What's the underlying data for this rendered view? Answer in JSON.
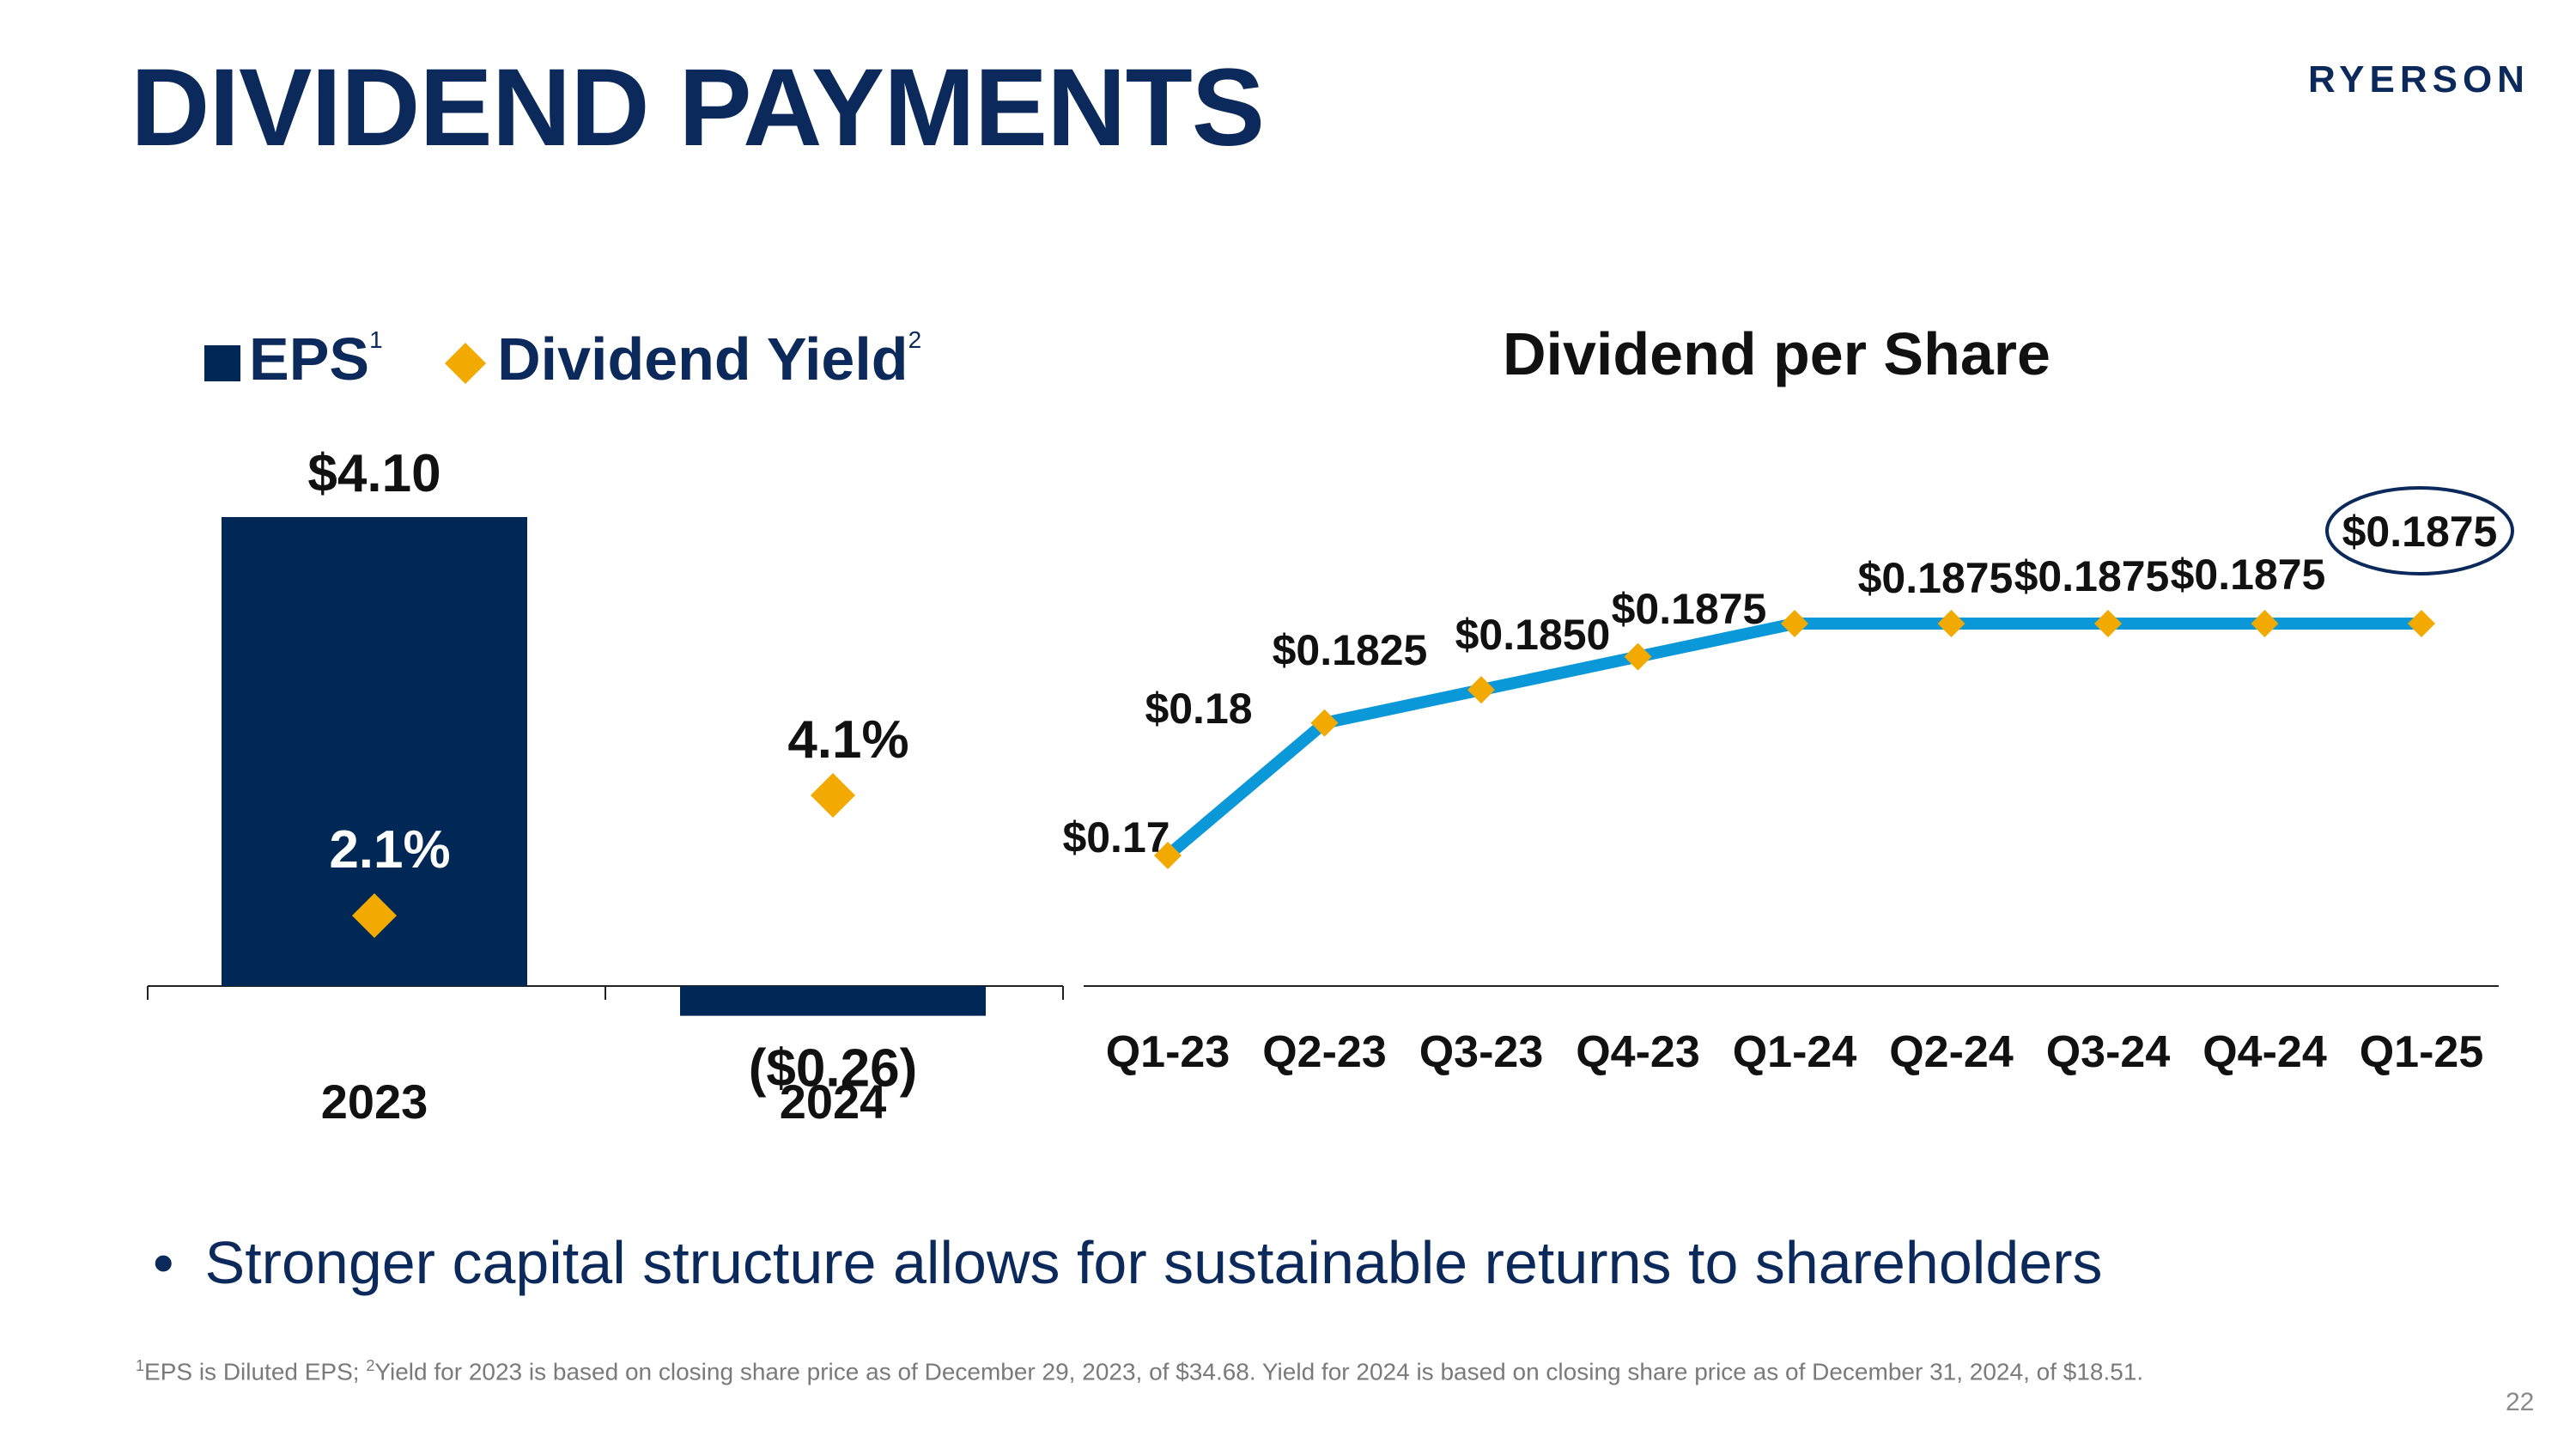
{
  "slide": {
    "title": "DIVIDEND PAYMENTS",
    "logo_text": "RYERSON",
    "page_number": "22",
    "bullet": "Stronger capital structure allows for sustainable returns to shareholders",
    "footnote": {
      "sup1": "1",
      "part1": "EPS is Diluted EPS; ",
      "sup2": "2",
      "part2": "Yield for 2023 is based on closing share price as of December 29, 2023, of $34.68. Yield for 2024 is based on closing share price as of December 31, 2024, of $18.51."
    }
  },
  "legend": {
    "eps_label": "EPS",
    "eps_sup": "1",
    "yield_label": "Dividend Yield",
    "yield_sup": "2"
  },
  "colors": {
    "navy": "#002856",
    "title_navy": "#0b2a5b",
    "gold": "#f2a900",
    "line_blue": "#0a98d8"
  },
  "chart_data": [
    {
      "type": "bar",
      "title": "",
      "categories": [
        "2023",
        "2024"
      ],
      "series": [
        {
          "name": "EPS",
          "values": [
            4.1,
            -0.26
          ],
          "labels": [
            "$4.10",
            "($0.26)"
          ]
        },
        {
          "name": "Dividend Yield",
          "values": [
            2.1,
            4.1
          ],
          "labels": [
            "2.1%",
            "4.1%"
          ],
          "marker": "diamond"
        }
      ],
      "ylim": [
        -0.26,
        4.1
      ]
    },
    {
      "type": "line",
      "title": "Dividend per Share",
      "categories": [
        "Q1-23",
        "Q2-23",
        "Q3-23",
        "Q4-23",
        "Q1-24",
        "Q2-24",
        "Q3-24",
        "Q4-24",
        "Q1-25"
      ],
      "series": [
        {
          "name": "Dividend per Share",
          "values": [
            0.17,
            0.18,
            0.1825,
            0.185,
            0.1875,
            0.1875,
            0.1875,
            0.1875,
            0.1875
          ],
          "labels": [
            "$0.17",
            "$0.18",
            "$0.1825",
            "$0.1850",
            "$0.1875",
            "$0.1875",
            "$0.1875",
            "$0.1875",
            "$0.1875"
          ]
        }
      ],
      "highlighted_category": "Q1-25"
    }
  ]
}
